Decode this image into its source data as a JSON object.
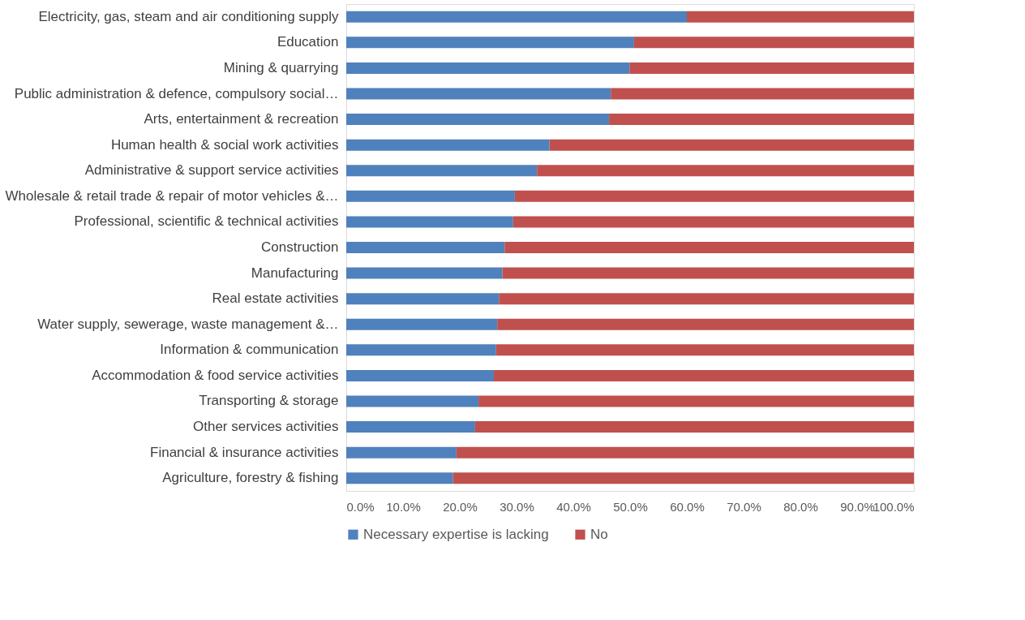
{
  "chart_data": {
    "type": "bar",
    "orientation": "horizontal",
    "stacked": true,
    "categories": [
      "Electricity, gas, steam and air conditioning supply",
      "Education",
      "Mining & quarrying",
      "Public administration & defence, compulsory social…",
      "Arts, entertainment & recreation",
      "Human health & social work activities",
      "Administrative & support service activities",
      "Wholesale & retail trade & repair of motor vehicles &…",
      "Professional, scientific & technical activities",
      "Construction",
      "Manufacturing",
      "Real estate activities",
      "Water supply, sewerage, waste management &…",
      "Information & communication",
      "Accommodation & food service activities",
      "Transporting & storage",
      "Other services activities",
      "Financial & insurance activities",
      "Agriculture, forestry & fishing"
    ],
    "series": [
      {
        "name": "Necessary expertise is lacking",
        "color": "#4f81bd",
        "values": [
          60.0,
          50.7,
          49.9,
          46.6,
          46.3,
          35.8,
          33.6,
          29.7,
          29.4,
          27.9,
          27.5,
          26.9,
          26.6,
          26.4,
          26.0,
          23.3,
          22.7,
          19.4,
          18.8
        ]
      },
      {
        "name": "No",
        "color": "#c0504d",
        "values": [
          40.0,
          49.3,
          50.1,
          53.4,
          53.7,
          64.2,
          66.4,
          70.3,
          70.6,
          72.1,
          72.5,
          73.1,
          73.4,
          73.6,
          74.0,
          76.7,
          77.3,
          80.6,
          81.2
        ]
      }
    ],
    "xlim": [
      0,
      100
    ],
    "xticks": [
      {
        "value": 0,
        "label": "0.0%"
      },
      {
        "value": 10,
        "label": "10.0%"
      },
      {
        "value": 20,
        "label": "20.0%"
      },
      {
        "value": 30,
        "label": "30.0%"
      },
      {
        "value": 40,
        "label": "40.0%"
      },
      {
        "value": 50,
        "label": "50.0%"
      },
      {
        "value": 60,
        "label": "60.0%"
      },
      {
        "value": 70,
        "label": "70.0%"
      },
      {
        "value": 80,
        "label": "80.0%"
      },
      {
        "value": 90,
        "label": "90.0%"
      },
      {
        "value": 100,
        "label": "100.0%"
      }
    ],
    "grid": false,
    "legend": "bottom"
  }
}
